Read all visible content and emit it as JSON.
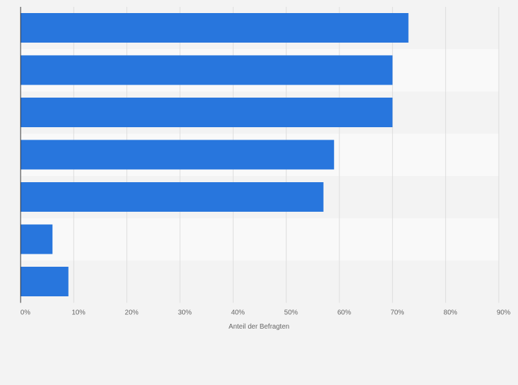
{
  "chart_data": {
    "type": "bar",
    "orientation": "horizontal",
    "categories": [
      "",
      "",
      "",
      "",
      "",
      "",
      ""
    ],
    "values": [
      73,
      70,
      70,
      59,
      57,
      6,
      9
    ],
    "unit": "%",
    "title": "",
    "xlabel": "Anteil der Befragten",
    "ylabel": "",
    "xlim": [
      0,
      90
    ],
    "x_ticks": [
      "0%",
      "10%",
      "20%",
      "30%",
      "40%",
      "50%",
      "60%",
      "70%",
      "80%",
      "90%"
    ],
    "grid": true,
    "legend": "none",
    "colors": {
      "bar": "#2876dd",
      "band_light": "#f9f9f9",
      "band_dark": "#f3f3f3",
      "gridline": "#dddddd",
      "axis": "#333333",
      "text": "#666666"
    }
  }
}
